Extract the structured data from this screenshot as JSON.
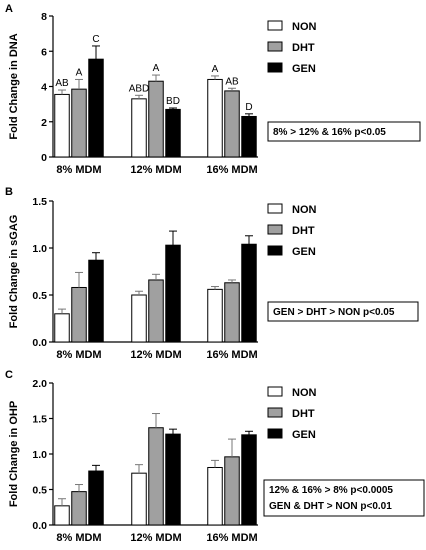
{
  "figure": {
    "legend_entries": [
      "NON",
      "DHT",
      "GEN"
    ],
    "series_colors": {
      "NON": "#ffffff",
      "DHT": "#a0a0a0",
      "GEN": "#000000"
    }
  },
  "chart_data": [
    {
      "panel": "A",
      "type": "bar",
      "categories": [
        "8% MDM",
        "12% MDM",
        "16% MDM"
      ],
      "series": [
        {
          "name": "NON",
          "values": [
            3.55,
            3.3,
            4.4
          ],
          "errors": [
            0.25,
            0.2,
            0.2
          ],
          "letters": [
            "AB",
            "ABD",
            "A"
          ]
        },
        {
          "name": "DHT",
          "values": [
            3.85,
            4.3,
            3.75
          ],
          "errors": [
            0.55,
            0.35,
            0.15
          ],
          "letters": [
            "A",
            "A",
            "AB"
          ]
        },
        {
          "name": "GEN",
          "values": [
            5.55,
            2.7,
            2.3
          ],
          "errors": [
            0.75,
            0.08,
            0.15
          ],
          "letters": [
            "C",
            "BD",
            "D"
          ]
        }
      ],
      "title": "",
      "xlabel": "",
      "ylabel": "Fold Change in DNA",
      "ylim": [
        0,
        8
      ],
      "yticks": [
        "0",
        "2",
        "4",
        "6",
        "8"
      ],
      "annotation": [
        "8% > 12% & 16% p<0.05"
      ],
      "legend": "top-right",
      "grid": false
    },
    {
      "panel": "B",
      "type": "bar",
      "categories": [
        "8% MDM",
        "12% MDM",
        "16% MDM"
      ],
      "series": [
        {
          "name": "NON",
          "values": [
            0.3,
            0.5,
            0.56
          ],
          "errors": [
            0.05,
            0.04,
            0.03
          ]
        },
        {
          "name": "DHT",
          "values": [
            0.58,
            0.66,
            0.63
          ],
          "errors": [
            0.16,
            0.06,
            0.03
          ]
        },
        {
          "name": "GEN",
          "values": [
            0.87,
            1.03,
            1.04
          ],
          "errors": [
            0.08,
            0.15,
            0.09
          ]
        }
      ],
      "title": "",
      "xlabel": "",
      "ylabel": "Fold Change in sGAG",
      "ylim": [
        0,
        1.5
      ],
      "yticks": [
        "0.0",
        "0.5",
        "1.0",
        "1.5"
      ],
      "annotation": [
        "GEN > DHT > NON p<0.05"
      ],
      "legend": "top-right",
      "grid": false
    },
    {
      "panel": "C",
      "type": "bar",
      "categories": [
        "8% MDM",
        "12% MDM",
        "16% MDM"
      ],
      "series": [
        {
          "name": "NON",
          "values": [
            0.27,
            0.73,
            0.81
          ],
          "errors": [
            0.1,
            0.12,
            0.1
          ]
        },
        {
          "name": "DHT",
          "values": [
            0.47,
            1.37,
            0.96
          ],
          "errors": [
            0.1,
            0.2,
            0.25
          ]
        },
        {
          "name": "GEN",
          "values": [
            0.76,
            1.28,
            1.27
          ],
          "errors": [
            0.08,
            0.07,
            0.05
          ]
        }
      ],
      "title": "",
      "xlabel": "",
      "ylabel": "Fold Change in OHP",
      "ylim": [
        0,
        2.0
      ],
      "yticks": [
        "0.0",
        "0.5",
        "1.0",
        "1.5",
        "2.0"
      ],
      "annotation": [
        "12% & 16% > 8% p<0.0005",
        "GEN & DHT > NON p<0.01"
      ],
      "legend": "top-right",
      "grid": false
    }
  ]
}
